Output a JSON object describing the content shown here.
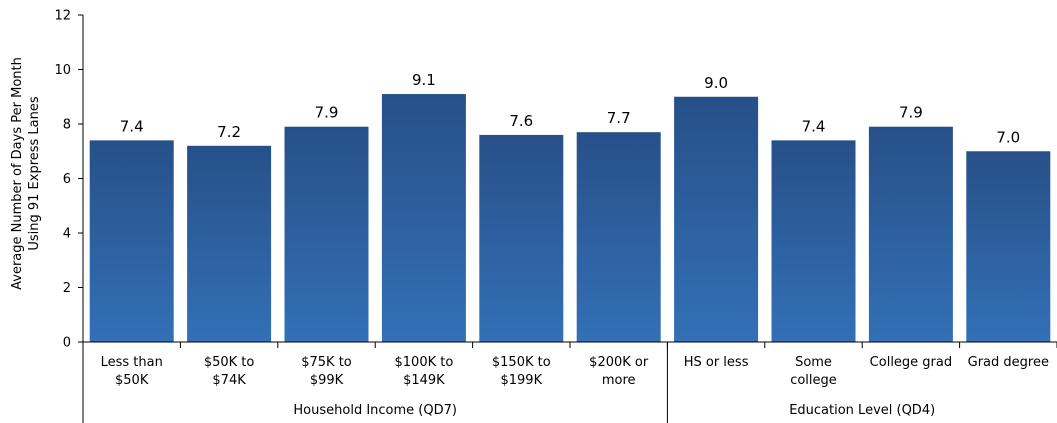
{
  "chart_data": {
    "type": "bar",
    "categories": [
      [
        "Less than",
        "$50K"
      ],
      [
        "$50K to",
        "$74K"
      ],
      [
        "$75K to",
        "$99K"
      ],
      [
        "$100K to",
        "$149K"
      ],
      [
        "$150K to",
        "$199K"
      ],
      [
        "$200K or",
        "more"
      ],
      [
        "HS or less"
      ],
      [
        "Some",
        "college"
      ],
      [
        "College grad"
      ],
      [
        "Grad degree"
      ]
    ],
    "values": [
      7.4,
      7.2,
      7.9,
      9.1,
      7.6,
      7.7,
      9.0,
      7.4,
      7.9,
      7.0
    ],
    "data_labels": [
      "7.4",
      "7.2",
      "7.9",
      "9.1",
      "7.6",
      "7.7",
      "9.0",
      "7.4",
      "7.9",
      "7.0"
    ],
    "groups": [
      {
        "label": "Household Income (QD7)",
        "count": 6
      },
      {
        "label": "Education Level (QD4)",
        "count": 4
      }
    ],
    "ylabel": [
      "Average Number of Days Per Month",
      "Using 91 Express Lanes"
    ],
    "ylim": [
      0,
      12
    ],
    "yticks": [
      0,
      2,
      4,
      6,
      8,
      10,
      12
    ],
    "grid": false,
    "colors": {
      "bar_top": "#275089",
      "bar_bottom": "#3370b6",
      "axis": "#000000"
    }
  }
}
